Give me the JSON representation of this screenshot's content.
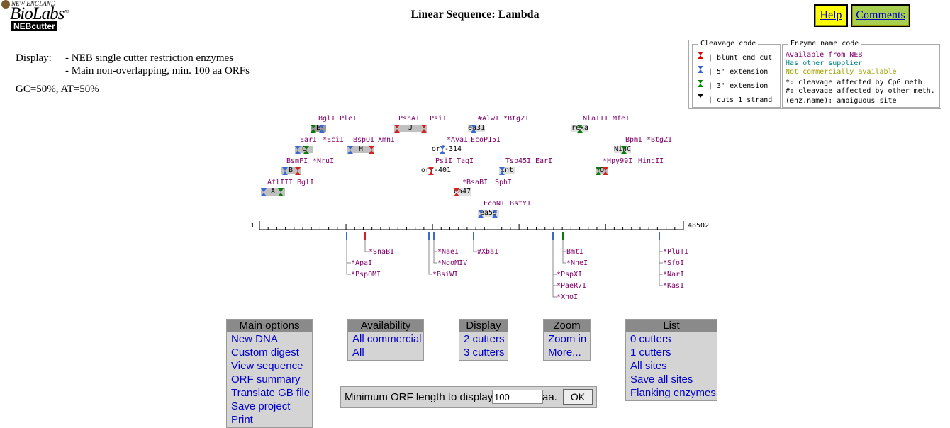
{
  "logo": {
    "top": "NEW ENGLAND",
    "main": "BioLabs",
    "inc": "inc.",
    "badge": "NEBcutter"
  },
  "title": "Linear Sequence: Lambda",
  "header_buttons": {
    "help": "Help",
    "comments": "Comments"
  },
  "display": {
    "label": "Display:",
    "line1": "- NEB single cutter restriction enzymes",
    "line2": "- Main non-overlapping, min. 100 aa ORFs",
    "gc": "GC=50%, AT=50%"
  },
  "legend": {
    "cleavage_title": "Cleavage code",
    "cleavage": [
      "blunt end cut",
      "5' extension",
      "3' extension",
      "cuts 1 strand"
    ],
    "enzyme_title": "Enzyme name code",
    "enzyme": [
      "Available from NEB",
      "Has other supplier",
      "Not commercially available",
      "*: cleavage affected by CpG meth.",
      "#: cleavage affected by other meth.",
      "(enz.name): ambiguous site"
    ],
    "colors": {
      "neb": "#80006a",
      "other": "#008080",
      "notcommercial": "#a0a000",
      "cpg": "#000000",
      "other_meth": "#e07000"
    }
  },
  "map": {
    "start": "1",
    "end": "48502",
    "upper_labels": [
      "BglI PleI",
      "PshAI",
      "PsiI",
      "#AlwI",
      "*BtgZI",
      "NlaIII",
      "MfeI",
      "EarI",
      "*EciI",
      "BspQI",
      "XmnI",
      "*AvaI",
      "EcoP15I",
      "BpmI",
      "*BtgZI",
      "BsmFI",
      "*NruI",
      "PsiI",
      "TaqI",
      "Tsp45I",
      "EarI",
      "*Hpy99I",
      "HincII",
      "AflIII",
      "BglI",
      "*BsaBI",
      "SphI",
      "EcoNI",
      "BstYI"
    ],
    "orfs": [
      "E",
      "J",
      "ea31",
      "rexa",
      "C",
      "H",
      "orf-314",
      "NinC",
      "B",
      "orf-401",
      "int",
      "O",
      "A",
      "ea47",
      "ea59"
    ],
    "lower_labels": [
      "*SnaBI",
      "*ApaI",
      "*PspOMI",
      "*NaeI",
      "*NgoMIV",
      "*BsiWI",
      "#XbaI",
      "BmtI",
      "*NheI",
      "*PspXI",
      "*PaeR7I",
      "*XhoI",
      "*PluTI",
      "*SfoI",
      "*NarI",
      "*KasI"
    ]
  },
  "menus": {
    "main": {
      "title": "Main options",
      "items": [
        "New DNA",
        "Custom digest",
        "View sequence",
        "ORF summary",
        "Translate GB file",
        "Save project",
        "Print"
      ]
    },
    "availability": {
      "title": "Availability",
      "items": [
        "All commercial",
        "All"
      ]
    },
    "display": {
      "title": "Display",
      "items": [
        "2 cutters",
        "3 cutters"
      ]
    },
    "zoom": {
      "title": "Zoom",
      "items": [
        "Zoom in",
        "More..."
      ]
    },
    "list": {
      "title": "List",
      "items": [
        "0 cutters",
        "1 cutters",
        "All sites",
        "Save all sites",
        "Flanking enzymes"
      ]
    }
  },
  "orf_form": {
    "label": "Minimum ORF length to display:",
    "value": "100",
    "unit": "aa.",
    "button": "OK"
  }
}
